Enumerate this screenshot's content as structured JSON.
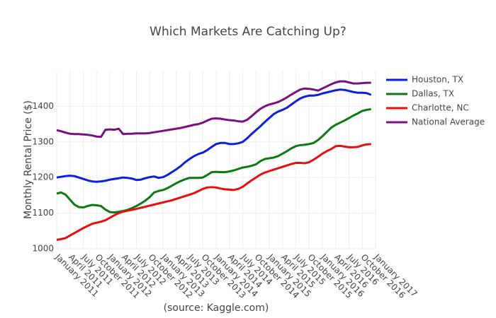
{
  "chart_data": {
    "type": "line",
    "title": "Which Markets Are Catching Up?",
    "y_label": "Monthly Rental Price ($)",
    "annotation": "(source: Kaggle.com)",
    "x": [
      "2011-01",
      "2011-02",
      "2011-03",
      "2011-04",
      "2011-05",
      "2011-06",
      "2011-07",
      "2011-08",
      "2011-09",
      "2011-10",
      "2011-11",
      "2011-12",
      "2012-01",
      "2012-02",
      "2012-03",
      "2012-04",
      "2012-05",
      "2012-06",
      "2012-07",
      "2012-08",
      "2012-09",
      "2012-10",
      "2012-11",
      "2012-12",
      "2013-01",
      "2013-02",
      "2013-03",
      "2013-04",
      "2013-05",
      "2013-06",
      "2013-07",
      "2013-08",
      "2013-09",
      "2013-10",
      "2013-11",
      "2013-12",
      "2014-01",
      "2014-02",
      "2014-03",
      "2014-04",
      "2014-05",
      "2014-06",
      "2014-07",
      "2014-08",
      "2014-09",
      "2014-10",
      "2014-11",
      "2014-12",
      "2015-01",
      "2015-02",
      "2015-03",
      "2015-04",
      "2015-05",
      "2015-06",
      "2015-07",
      "2015-08",
      "2015-09",
      "2015-10",
      "2015-11",
      "2015-12",
      "2016-01",
      "2016-02",
      "2016-03",
      "2016-04",
      "2016-05",
      "2016-06",
      "2016-07",
      "2016-08",
      "2016-09",
      "2016-10",
      "2016-11",
      "2016-12"
    ],
    "series": [
      {
        "name": "Houston, TX",
        "color": "#0a1fe0",
        "values": [
          1200,
          1202,
          1204,
          1205,
          1204,
          1200,
          1196,
          1192,
          1189,
          1188,
          1189,
          1191,
          1194,
          1196,
          1198,
          1200,
          1199,
          1197,
          1193,
          1194,
          1198,
          1201,
          1203,
          1199,
          1201,
          1207,
          1215,
          1223,
          1232,
          1243,
          1252,
          1260,
          1266,
          1270,
          1277,
          1286,
          1294,
          1297,
          1297,
          1294,
          1294,
          1296,
          1300,
          1310,
          1322,
          1333,
          1344,
          1356,
          1367,
          1378,
          1385,
          1390,
          1396,
          1405,
          1414,
          1422,
          1427,
          1430,
          1430,
          1432,
          1436,
          1439,
          1442,
          1445,
          1447,
          1446,
          1443,
          1440,
          1438,
          1438,
          1437,
          1432
        ]
      },
      {
        "name": "Dallas, TX",
        "color": "#0c7a12",
        "values": [
          1155,
          1158,
          1152,
          1138,
          1124,
          1117,
          1116,
          1120,
          1123,
          1122,
          1120,
          1110,
          1103,
          1102,
          1104,
          1106,
          1109,
          1114,
          1120,
          1127,
          1135,
          1145,
          1158,
          1162,
          1165,
          1170,
          1177,
          1184,
          1190,
          1195,
          1199,
          1199,
          1199,
          1200,
          1207,
          1215,
          1216,
          1215,
          1215,
          1217,
          1220,
          1224,
          1228,
          1230,
          1233,
          1237,
          1246,
          1252,
          1254,
          1256,
          1260,
          1267,
          1274,
          1282,
          1288,
          1291,
          1292,
          1294,
          1297,
          1305,
          1316,
          1328,
          1340,
          1348,
          1354,
          1360,
          1367,
          1374,
          1380,
          1387,
          1390,
          1392
        ]
      },
      {
        "name": "Charlotte, NC",
        "color": "#e80e0e",
        "values": [
          1025,
          1027,
          1030,
          1037,
          1044,
          1051,
          1058,
          1064,
          1070,
          1073,
          1076,
          1080,
          1087,
          1094,
          1100,
          1104,
          1107,
          1109,
          1112,
          1115,
          1118,
          1121,
          1124,
          1127,
          1130,
          1133,
          1136,
          1140,
          1144,
          1148,
          1152,
          1156,
          1162,
          1168,
          1172,
          1173,
          1172,
          1169,
          1167,
          1166,
          1165,
          1168,
          1174,
          1183,
          1192,
          1200,
          1208,
          1214,
          1218,
          1222,
          1226,
          1230,
          1234,
          1238,
          1241,
          1241,
          1240,
          1243,
          1250,
          1258,
          1267,
          1274,
          1280,
          1288,
          1289,
          1287,
          1285,
          1285,
          1286,
          1290,
          1293,
          1294
        ]
      },
      {
        "name": "National Average",
        "color": "#7a0f80",
        "values": [
          1333,
          1330,
          1326,
          1323,
          1322,
          1322,
          1321,
          1320,
          1318,
          1315,
          1314,
          1334,
          1335,
          1334,
          1337,
          1322,
          1323,
          1323,
          1324,
          1324,
          1324,
          1325,
          1327,
          1329,
          1331,
          1333,
          1335,
          1337,
          1339,
          1342,
          1345,
          1348,
          1350,
          1354,
          1360,
          1365,
          1366,
          1365,
          1363,
          1361,
          1360,
          1358,
          1357,
          1362,
          1372,
          1383,
          1393,
          1400,
          1405,
          1408,
          1412,
          1418,
          1425,
          1433,
          1440,
          1447,
          1450,
          1449,
          1447,
          1444,
          1450,
          1456,
          1462,
          1467,
          1470,
          1470,
          1467,
          1464,
          1464,
          1465,
          1466,
          1466
        ]
      }
    ],
    "xlim": [
      "2011-01",
      "2017-01"
    ],
    "xticks": [
      {
        "value": "2011-01",
        "label": "January 2011"
      },
      {
        "value": "2011-04",
        "label": "April 2011"
      },
      {
        "value": "2011-07",
        "label": "July 2011"
      },
      {
        "value": "2011-10",
        "label": "October 2011"
      },
      {
        "value": "2012-01",
        "label": "January 2012"
      },
      {
        "value": "2012-04",
        "label": "April 2012"
      },
      {
        "value": "2012-07",
        "label": "July 2012"
      },
      {
        "value": "2012-10",
        "label": "October 2012"
      },
      {
        "value": "2013-01",
        "label": "January 2013"
      },
      {
        "value": "2013-04",
        "label": "April 2013"
      },
      {
        "value": "2013-07",
        "label": "July 2013"
      },
      {
        "value": "2013-10",
        "label": "October 2013"
      },
      {
        "value": "2014-01",
        "label": "January 2014"
      },
      {
        "value": "2014-04",
        "label": "April 2014"
      },
      {
        "value": "2014-07",
        "label": "July 2014"
      },
      {
        "value": "2014-10",
        "label": "October 2014"
      },
      {
        "value": "2015-01",
        "label": "January 2015"
      },
      {
        "value": "2015-04",
        "label": "April 2015"
      },
      {
        "value": "2015-07",
        "label": "July 2015"
      },
      {
        "value": "2015-10",
        "label": "October 2015"
      },
      {
        "value": "2016-01",
        "label": "January 2016"
      },
      {
        "value": "2016-04",
        "label": "April 2016"
      },
      {
        "value": "2016-07",
        "label": "July 2016"
      },
      {
        "value": "2016-10",
        "label": "October 2016"
      },
      {
        "value": "2017-01",
        "label": "January 2017"
      }
    ],
    "ylim": [
      1000,
      1500
    ],
    "yticks": [
      1000,
      1100,
      1200,
      1300,
      1400
    ],
    "grid": true,
    "legend": "top-right"
  }
}
